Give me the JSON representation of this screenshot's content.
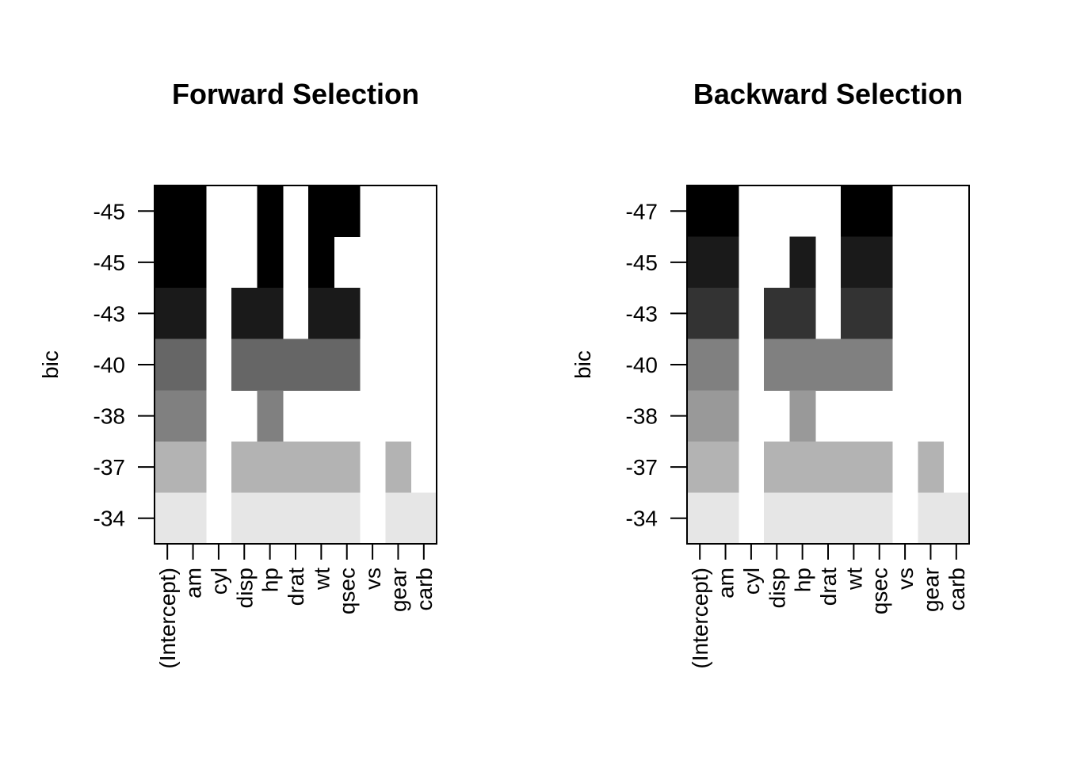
{
  "chart_data": [
    {
      "type": "heatmap",
      "title": "Forward Selection",
      "ylabel": "bic",
      "xlabel": "",
      "variables": [
        "(Intercept)",
        "am",
        "cyl",
        "disp",
        "hp",
        "drat",
        "wt",
        "qsec",
        "vs",
        "gear",
        "carb"
      ],
      "ytick_labels": [
        "-45",
        "-45",
        "-43",
        "-40",
        "-38",
        "-37",
        "-34"
      ],
      "rows": [
        {
          "bic": "-45",
          "shade": "#000000",
          "included": [
            "(Intercept)",
            "am",
            "hp",
            "wt",
            "qsec"
          ]
        },
        {
          "bic": "-45",
          "shade": "#000000",
          "included": [
            "(Intercept)",
            "am",
            "hp",
            "wt"
          ]
        },
        {
          "bic": "-43",
          "shade": "#1a1a1a",
          "included": [
            "(Intercept)",
            "am",
            "disp",
            "hp",
            "wt",
            "qsec"
          ]
        },
        {
          "bic": "-40",
          "shade": "#666666",
          "included": [
            "(Intercept)",
            "am",
            "disp",
            "hp",
            "drat",
            "wt",
            "qsec"
          ]
        },
        {
          "bic": "-38",
          "shade": "#808080",
          "included": [
            "(Intercept)",
            "am",
            "hp"
          ]
        },
        {
          "bic": "-37",
          "shade": "#b3b3b3",
          "included": [
            "(Intercept)",
            "am",
            "disp",
            "hp",
            "drat",
            "wt",
            "qsec",
            "gear"
          ]
        },
        {
          "bic": "-34",
          "shade": "#e6e6e6",
          "included": [
            "(Intercept)",
            "am",
            "disp",
            "hp",
            "drat",
            "wt",
            "qsec",
            "gear",
            "carb"
          ]
        }
      ]
    },
    {
      "type": "heatmap",
      "title": "Backward Selection",
      "ylabel": "bic",
      "xlabel": "",
      "variables": [
        "(Intercept)",
        "am",
        "cyl",
        "disp",
        "hp",
        "drat",
        "wt",
        "qsec",
        "vs",
        "gear",
        "carb"
      ],
      "ytick_labels": [
        "-47",
        "-45",
        "-43",
        "-40",
        "-38",
        "-37",
        "-34"
      ],
      "rows": [
        {
          "bic": "-47",
          "shade": "#000000",
          "included": [
            "(Intercept)",
            "am",
            "wt",
            "qsec"
          ]
        },
        {
          "bic": "-45",
          "shade": "#1a1a1a",
          "included": [
            "(Intercept)",
            "am",
            "hp",
            "wt",
            "qsec"
          ]
        },
        {
          "bic": "-43",
          "shade": "#333333",
          "included": [
            "(Intercept)",
            "am",
            "disp",
            "hp",
            "wt",
            "qsec"
          ]
        },
        {
          "bic": "-40",
          "shade": "#808080",
          "included": [
            "(Intercept)",
            "am",
            "disp",
            "hp",
            "drat",
            "wt",
            "qsec"
          ]
        },
        {
          "bic": "-38",
          "shade": "#999999",
          "included": [
            "(Intercept)",
            "am",
            "hp"
          ]
        },
        {
          "bic": "-37",
          "shade": "#b3b3b3",
          "included": [
            "(Intercept)",
            "am",
            "disp",
            "hp",
            "drat",
            "wt",
            "qsec",
            "gear"
          ]
        },
        {
          "bic": "-34",
          "shade": "#e6e6e6",
          "included": [
            "(Intercept)",
            "am",
            "disp",
            "hp",
            "drat",
            "wt",
            "qsec",
            "gear",
            "carb"
          ]
        }
      ]
    }
  ]
}
